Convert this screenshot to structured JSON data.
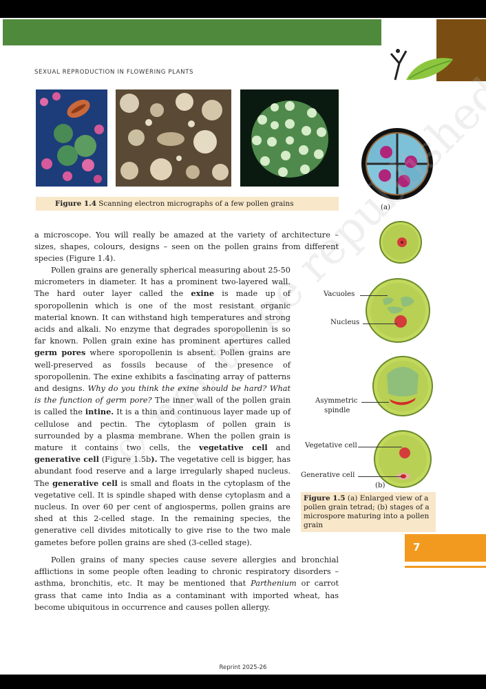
{
  "header": {
    "running_head": "SEXUAL REPRODUCTION IN FLOWERING PLANTS"
  },
  "figure_1_4": {
    "label": "Figure 1.4",
    "caption": "Scanning electron micrographs of a few pollen grains"
  },
  "figure_1_5": {
    "panel_a_label": "(a)",
    "panel_b_label": "(b)",
    "labels": {
      "vacuoles": "Vacuoles",
      "nucleus": "Nucleus",
      "asymmetric_spindle_1": "Asymmetric",
      "asymmetric_spindle_2": "spindle",
      "vegetative_cell": "Vegetative cell",
      "generative_cell": "Generative cell"
    },
    "caption_label": "Figure 1.5",
    "caption": "(a) Enlarged view of a pollen grain tetrad; (b) stages of a microspore maturing into a pollen grain"
  },
  "text": {
    "p1": "a microscope.  You will really be amazed at the variety of architecture – sizes, shapes, colours, designs – seen on the pollen grains from different species (Figure 1.4).",
    "p2_a": "Pollen grains are generally spherical measuring about 25-50 micrometers in diameter. It has a prominent two-layered wall. The hard outer layer called the ",
    "p2_exine": "exine",
    "p2_b": " is made up of sporopollenin which is one of the most resistant organic material known. It can withstand high temperatures and strong acids and alkali. No enzyme that degrades sporopollenin is so far known. Pollen grain exine has prominent apertures called ",
    "p2_germ_pores": "germ pores",
    "p2_c": " where sporopollenin is absent. Pollen grains are well-preserved as fossils because of the presence of sporopollenin. The exine exhibits a fascinating array of patterns and designs. ",
    "p2_q": "Why do you think the exine should be hard? What is the function of germ pore?",
    "p2_d": " The inner wall of the pollen grain is called the ",
    "p2_intine": "intine.",
    "p2_e": " It is a thin and continuous layer made up of cellulose and pectin. The cytoplasm of pollen grain is surrounded by a plasma membrane. When the pollen grain is mature it contains two cells, the ",
    "p2_veg": "vegetative cell",
    "p2_and": " and ",
    "p2_gen": "generative cell",
    "p2_f": " (Figure 1.5b",
    "p2_paren": ").",
    "p2_g": " The vegetative cell is bigger, has abundant food reserve and a large irregularly shaped nucleus. The ",
    "p2_gen2": "generative cell",
    "p2_h": " is small and floats in the cytoplasm of the vegetative cell.  It is spindle shaped with dense cytoplasm and a nucleus. In over 60 per cent of angiosperms, pollen grains are shed at this 2-celled stage. In the remaining species, the generative cell divides mitotically to give rise to the two male gametes before pollen grains are shed (3-celled stage).",
    "p3_a": "Pollen grains of many species cause severe allergies and bronchial afflictions in some people often leading to chronic respiratory disorders – asthma, bronchitis, etc. It may be mentioned that ",
    "p3_parth": "Parthenium",
    "p3_b": " or carrot grass that came into India as a contaminant with imported wheat, has become ubiquitous in occurrence and causes pollen allergy."
  },
  "watermark": "© not to be republished",
  "page_number": "7",
  "footer": "Reprint 2025-26"
}
